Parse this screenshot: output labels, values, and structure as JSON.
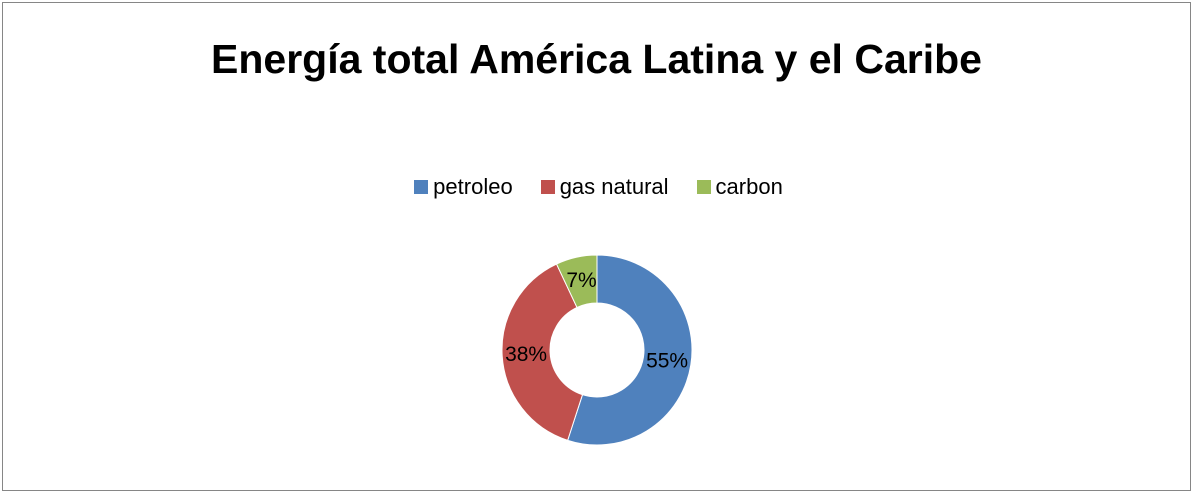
{
  "chart_data": {
    "type": "pie",
    "variant": "donut",
    "title": "Energía total América Latina y el Caribe",
    "legend_position": "top",
    "slices": [
      {
        "name": "petroleo",
        "value": 55,
        "label": "55%",
        "color": "#4F81BD"
      },
      {
        "name": "gas natural",
        "value": 38,
        "label": "38%",
        "color": "#C0504D"
      },
      {
        "name": "carbon",
        "value": 7,
        "label": "7%",
        "color": "#9BBB59"
      }
    ]
  }
}
